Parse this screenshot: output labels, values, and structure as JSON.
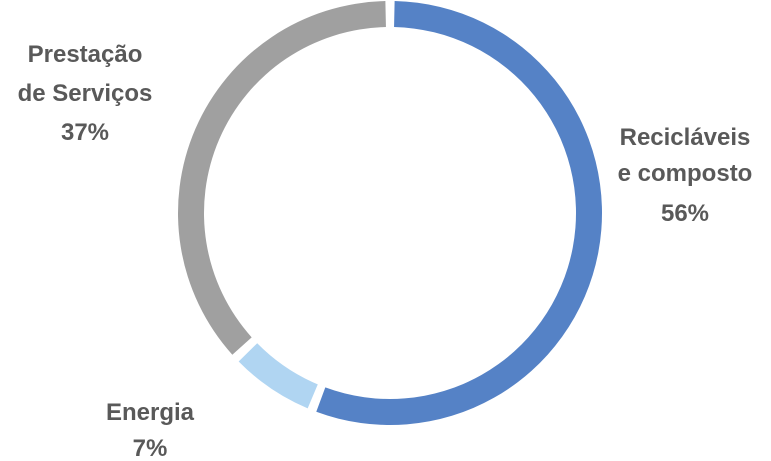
{
  "chart_data": {
    "type": "pie",
    "variant": "donut",
    "slices": [
      {
        "label_lines": [
          "Recicláveis",
          "e composto"
        ],
        "percent_label": "56%",
        "value": 56,
        "color": "#5582c6"
      },
      {
        "label_lines": [
          "Energia"
        ],
        "percent_label": "7%",
        "value": 7,
        "color": "#b0d5f2"
      },
      {
        "label_lines": [
          "Prestação",
          "de Serviços"
        ],
        "percent_label": "37%",
        "value": 37,
        "color": "#a0a0a0"
      }
    ],
    "start_angle_deg": 0,
    "direction": "clockwise"
  }
}
